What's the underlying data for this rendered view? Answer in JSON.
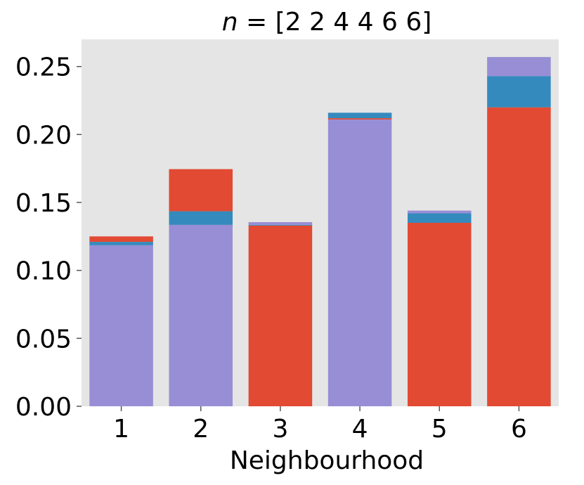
{
  "chart_data": {
    "type": "bar",
    "stacked": true,
    "title_prefix": "n",
    "title_suffix": " = [2 2 4 4 6 6]",
    "xlabel": "Neighbourhood",
    "ylabel": "",
    "categories": [
      "1",
      "2",
      "3",
      "4",
      "5",
      "6"
    ],
    "ylim": [
      0,
      0.27
    ],
    "yticks": [
      "0.00",
      "0.05",
      "0.10",
      "0.15",
      "0.20",
      "0.25"
    ],
    "ytick_values": [
      0,
      0.05,
      0.1,
      0.15,
      0.2,
      0.25
    ],
    "grid": false,
    "background": "#e5e5e5",
    "colors": {
      "red": "#e24a33",
      "blue": "#348abd",
      "purple": "#988ed5"
    },
    "bars": [
      {
        "segments": [
          {
            "color": "purple",
            "value": 0.1185
          },
          {
            "color": "blue",
            "value": 0.0025
          },
          {
            "color": "red",
            "value": 0.004
          }
        ]
      },
      {
        "segments": [
          {
            "color": "purple",
            "value": 0.1335
          },
          {
            "color": "blue",
            "value": 0.01
          },
          {
            "color": "red",
            "value": 0.031
          }
        ]
      },
      {
        "segments": [
          {
            "color": "red",
            "value": 0.133
          },
          {
            "color": "blue",
            "value": 0.0005
          },
          {
            "color": "purple",
            "value": 0.002
          }
        ]
      },
      {
        "segments": [
          {
            "color": "purple",
            "value": 0.211
          },
          {
            "color": "red",
            "value": 0.001
          },
          {
            "color": "blue",
            "value": 0.004
          }
        ]
      },
      {
        "segments": [
          {
            "color": "red",
            "value": 0.135
          },
          {
            "color": "blue",
            "value": 0.007
          },
          {
            "color": "purple",
            "value": 0.002
          }
        ]
      },
      {
        "segments": [
          {
            "color": "red",
            "value": 0.22
          },
          {
            "color": "blue",
            "value": 0.023
          },
          {
            "color": "purple",
            "value": 0.014
          }
        ]
      }
    ]
  }
}
